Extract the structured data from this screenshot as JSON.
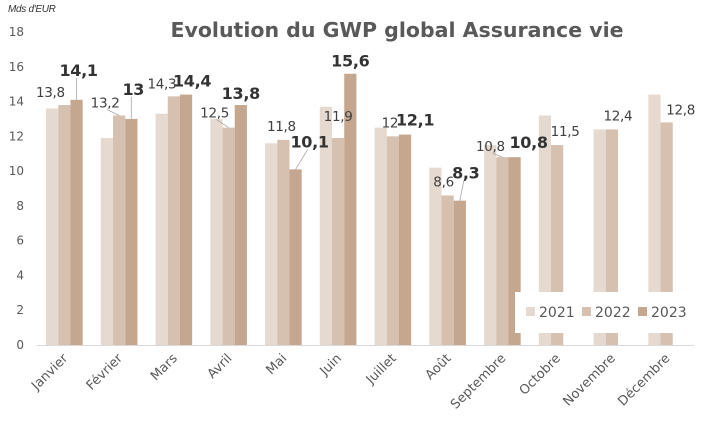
{
  "chart_data": {
    "type": "bar",
    "title": "Evolution du GWP global Assurance vie",
    "unit_label": "Mds d'EUR",
    "xlabel": "",
    "ylabel": "Mds d'EUR",
    "ylim": [
      0,
      18
    ],
    "yticks": [
      0,
      2,
      4,
      6,
      8,
      10,
      12,
      14,
      16,
      18
    ],
    "grid": false,
    "legend_position": "bottom-right",
    "categories": [
      "Janvier",
      "Février",
      "Mars",
      "Avril",
      "Mai",
      "Juin",
      "Juillet",
      "Août",
      "Septembre",
      "Octobre",
      "Novembre",
      "Décembre"
    ],
    "series": [
      {
        "name": "2021",
        "color": "#E6D9CF",
        "values": [
          13.6,
          11.9,
          13.3,
          13.0,
          11.6,
          13.7,
          12.5,
          10.2,
          11.5,
          13.2,
          12.4,
          14.4
        ],
        "labels": [
          null,
          null,
          null,
          null,
          null,
          null,
          null,
          null,
          null,
          null,
          null,
          null
        ]
      },
      {
        "name": "2022",
        "color": "#D6C0B0",
        "values": [
          13.8,
          13.2,
          14.3,
          12.5,
          11.8,
          11.9,
          12.0,
          8.6,
          10.8,
          11.5,
          12.4,
          12.8
        ],
        "labels": [
          "13,8",
          "13,2",
          "14,3",
          "12,5",
          "11,8",
          "11,9",
          "12",
          "8,6",
          "10,8",
          "11,5",
          "12,4",
          "12,8"
        ]
      },
      {
        "name": "2023",
        "color": "#C5A68E",
        "values": [
          14.1,
          13.0,
          14.4,
          13.8,
          10.1,
          15.6,
          12.1,
          8.3,
          10.8,
          null,
          null,
          null
        ],
        "labels": [
          "14,1",
          "13",
          "14,4",
          "13,8",
          "10,1",
          "15,6",
          "12,1",
          "8,3",
          "10,8",
          null,
          null,
          null
        ]
      }
    ]
  }
}
